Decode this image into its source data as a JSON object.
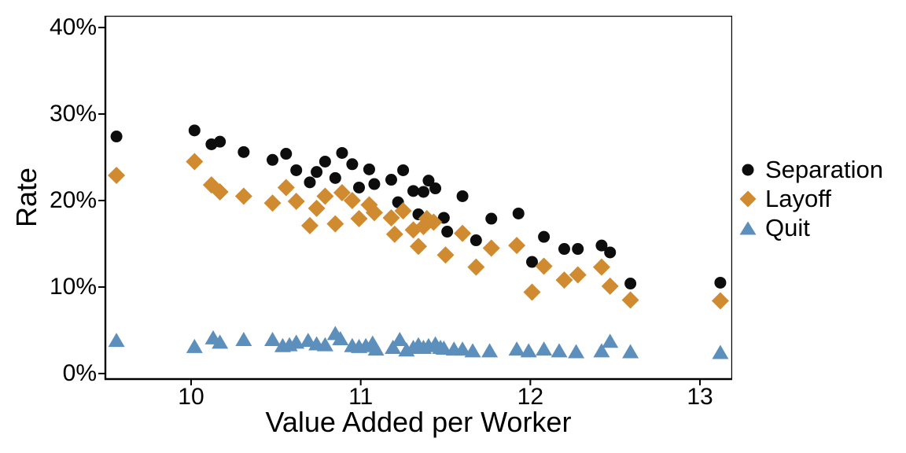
{
  "axes": {
    "x": {
      "label": "Value Added per Worker",
      "tick_labels": [
        "10",
        "11",
        "12",
        "13"
      ],
      "tick_values": [
        10,
        11,
        12,
        13
      ]
    },
    "y": {
      "label": "Rate",
      "tick_labels": [
        "0%",
        "10%",
        "20%",
        "30%",
        "40%"
      ],
      "tick_values": [
        0,
        10,
        20,
        30,
        40
      ]
    }
  },
  "legend": {
    "items": [
      {
        "label": "Separation",
        "marker": "circle",
        "color": "#0d0d0d"
      },
      {
        "label": "Layoff",
        "marker": "diamond",
        "color": "#d08a30"
      },
      {
        "label": "Quit",
        "marker": "triangle",
        "color": "#5c8fbc"
      }
    ]
  },
  "chart_data": {
    "type": "scatter",
    "title": "",
    "xlabel": "Value Added per Worker",
    "ylabel": "Rate",
    "xlim": [
      9.49,
      13.19
    ],
    "ylim": [
      -0.64,
      41.36
    ],
    "x_ticks": [
      10,
      11,
      12,
      13
    ],
    "y_ticks": [
      0,
      10,
      20,
      30,
      40
    ],
    "y_unit": "percent",
    "grid": false,
    "legend_position": "right-outside",
    "series": [
      {
        "name": "Separation",
        "marker": "circle",
        "color": "#0d0d0d",
        "points": [
          [
            9.56,
            27.4
          ],
          [
            10.02,
            28.1
          ],
          [
            10.12,
            26.5
          ],
          [
            10.17,
            26.8
          ],
          [
            10.31,
            25.6
          ],
          [
            10.48,
            24.7
          ],
          [
            10.56,
            25.4
          ],
          [
            10.62,
            23.5
          ],
          [
            10.7,
            22.1
          ],
          [
            10.74,
            23.3
          ],
          [
            10.79,
            24.5
          ],
          [
            10.85,
            22.6
          ],
          [
            10.89,
            25.5
          ],
          [
            10.95,
            24.2
          ],
          [
            10.99,
            21.5
          ],
          [
            11.05,
            23.6
          ],
          [
            11.08,
            21.9
          ],
          [
            11.18,
            22.4
          ],
          [
            11.22,
            19.8
          ],
          [
            11.25,
            23.5
          ],
          [
            11.31,
            21.1
          ],
          [
            11.34,
            18.4
          ],
          [
            11.37,
            21.0
          ],
          [
            11.4,
            22.3
          ],
          [
            11.44,
            21.4
          ],
          [
            11.49,
            18.0
          ],
          [
            11.51,
            16.4
          ],
          [
            11.6,
            20.5
          ],
          [
            11.68,
            15.4
          ],
          [
            11.77,
            17.9
          ],
          [
            11.93,
            18.5
          ],
          [
            12.01,
            12.9
          ],
          [
            12.08,
            15.8
          ],
          [
            12.2,
            14.4
          ],
          [
            12.28,
            14.4
          ],
          [
            12.42,
            14.8
          ],
          [
            12.47,
            14.0
          ],
          [
            12.59,
            10.4
          ],
          [
            13.12,
            10.5
          ]
        ]
      },
      {
        "name": "Layoff",
        "marker": "diamond",
        "color": "#d08a30",
        "points": [
          [
            9.56,
            22.9
          ],
          [
            10.02,
            24.5
          ],
          [
            10.12,
            21.8
          ],
          [
            10.17,
            21.0
          ],
          [
            10.31,
            20.5
          ],
          [
            10.48,
            19.7
          ],
          [
            10.56,
            21.5
          ],
          [
            10.62,
            19.9
          ],
          [
            10.7,
            17.1
          ],
          [
            10.74,
            19.1
          ],
          [
            10.79,
            20.5
          ],
          [
            10.85,
            17.3
          ],
          [
            10.89,
            20.9
          ],
          [
            10.95,
            20.0
          ],
          [
            10.99,
            17.9
          ],
          [
            11.05,
            19.5
          ],
          [
            11.08,
            18.6
          ],
          [
            11.18,
            18.0
          ],
          [
            11.2,
            16.1
          ],
          [
            11.25,
            18.8
          ],
          [
            11.31,
            16.6
          ],
          [
            11.34,
            14.7
          ],
          [
            11.37,
            17.0
          ],
          [
            11.39,
            17.9
          ],
          [
            11.43,
            17.5
          ],
          [
            11.5,
            13.7
          ],
          [
            11.6,
            16.2
          ],
          [
            11.68,
            12.3
          ],
          [
            11.77,
            14.5
          ],
          [
            11.92,
            14.8
          ],
          [
            12.01,
            9.4
          ],
          [
            12.08,
            12.4
          ],
          [
            12.2,
            10.8
          ],
          [
            12.28,
            11.4
          ],
          [
            12.42,
            12.3
          ],
          [
            12.47,
            10.1
          ],
          [
            12.59,
            8.5
          ],
          [
            13.12,
            8.4
          ]
        ]
      },
      {
        "name": "Quit",
        "marker": "triangle",
        "color": "#5c8fbc",
        "points": [
          [
            9.56,
            3.8
          ],
          [
            10.02,
            3.1
          ],
          [
            10.13,
            4.1
          ],
          [
            10.17,
            3.6
          ],
          [
            10.31,
            3.9
          ],
          [
            10.48,
            3.9
          ],
          [
            10.54,
            3.2
          ],
          [
            10.58,
            3.3
          ],
          [
            10.62,
            3.6
          ],
          [
            10.69,
            3.8
          ],
          [
            10.74,
            3.4
          ],
          [
            10.79,
            3.3
          ],
          [
            10.85,
            4.6
          ],
          [
            10.88,
            4.0
          ],
          [
            10.95,
            3.2
          ],
          [
            10.99,
            3.1
          ],
          [
            11.03,
            3.2
          ],
          [
            11.07,
            3.5
          ],
          [
            11.09,
            2.8
          ],
          [
            11.19,
            3.0
          ],
          [
            11.23,
            3.9
          ],
          [
            11.27,
            2.7
          ],
          [
            11.31,
            3.0
          ],
          [
            11.34,
            3.3
          ],
          [
            11.37,
            3.0
          ],
          [
            11.4,
            3.2
          ],
          [
            11.44,
            3.4
          ],
          [
            11.47,
            3.0
          ],
          [
            11.49,
            2.9
          ],
          [
            11.55,
            2.8
          ],
          [
            11.6,
            2.8
          ],
          [
            11.66,
            2.6
          ],
          [
            11.76,
            2.6
          ],
          [
            11.92,
            2.8
          ],
          [
            11.99,
            2.6
          ],
          [
            12.08,
            2.8
          ],
          [
            12.17,
            2.6
          ],
          [
            12.27,
            2.5
          ],
          [
            12.42,
            2.6
          ],
          [
            12.47,
            3.7
          ],
          [
            12.59,
            2.5
          ],
          [
            13.12,
            2.4
          ]
        ]
      }
    ]
  }
}
